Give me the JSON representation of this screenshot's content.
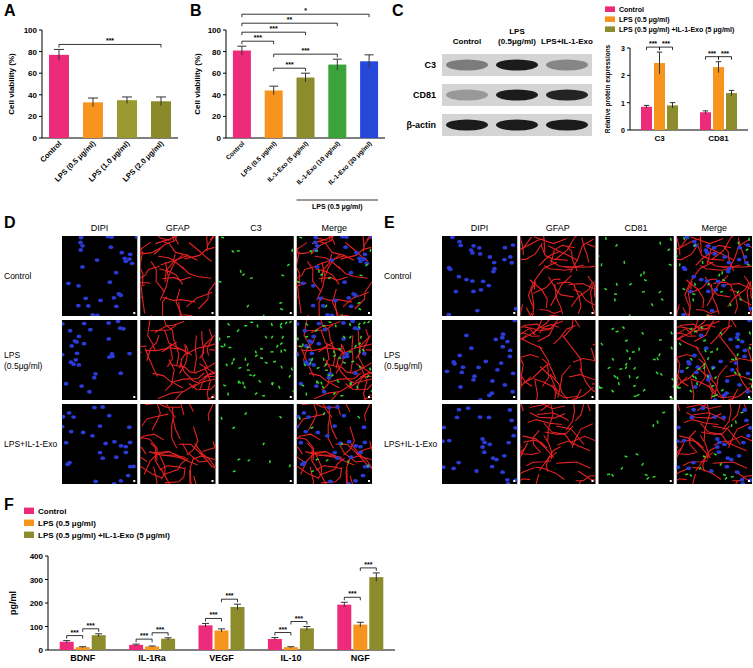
{
  "chart_data": [
    {
      "type": "bar",
      "title": "A",
      "y_label": "Cell viability (%)",
      "categories": [
        "Control",
        "LPS (0.5 μg/ml)",
        "LPS (1.0 μg/ml)",
        "LPS (2.0 μg/ml)"
      ],
      "values": [
        77,
        33,
        35,
        34
      ],
      "errors": [
        5,
        4,
        3,
        4
      ],
      "colors": [
        "#ee2a7b",
        "#f7941d",
        "#9a9a30",
        "#8a8a2a"
      ],
      "ylim": [
        0,
        100
      ],
      "yticks": [
        0,
        20,
        40,
        60,
        80,
        100
      ],
      "significance": [
        {
          "pair": [
            0,
            3
          ],
          "label": "***"
        }
      ]
    },
    {
      "type": "bar",
      "title": "B",
      "y_label": "Cell viability (%)",
      "categories": [
        "Control",
        "LPS (0.5 μg/ml)",
        "IL-1-Exo (5 μg/ml)",
        "IL-1-Exo (10 μg/ml)",
        "IL-1-Exo (20 μg/ml)"
      ],
      "values": [
        81,
        44,
        56,
        68,
        71
      ],
      "errors": [
        4,
        4,
        4,
        5,
        6
      ],
      "colors": [
        "#ee2a7b",
        "#f7941d",
        "#8c8c2c",
        "#3aa33a",
        "#2648d8"
      ],
      "ylim": [
        0,
        100
      ],
      "yticks": [
        0,
        20,
        40,
        60,
        80,
        100
      ],
      "group_label": {
        "text": "LPS (0.5 μg/ml)",
        "from": 2,
        "to": 4
      },
      "significance": [
        {
          "pair": [
            0,
            1
          ],
          "label": "***"
        },
        {
          "pair": [
            1,
            2
          ],
          "label": "***"
        },
        {
          "pair": [
            1,
            3
          ],
          "label": "***"
        },
        {
          "pair": [
            0,
            2
          ],
          "label": "***"
        },
        {
          "pair": [
            0,
            3
          ],
          "label": "**"
        },
        {
          "pair": [
            0,
            4
          ],
          "label": "*"
        }
      ]
    },
    {
      "type": "bar",
      "y_label": "Relative protein expressions",
      "categories": [
        "C3",
        "CD81"
      ],
      "series": [
        {
          "name": "Control",
          "color": "#ee2a7b",
          "values": [
            0.85,
            0.65
          ],
          "errors": [
            0.05,
            0.05
          ]
        },
        {
          "name": "LPS (0.5 μg/ml)",
          "color": "#f7941d",
          "values": [
            2.45,
            2.3
          ],
          "errors": [
            0.4,
            0.2
          ]
        },
        {
          "name": "LPS (0.5 μg/ml) +IL-1-Exo (5 μg/ml)",
          "color": "#8c8c2c",
          "values": [
            0.9,
            1.35
          ],
          "errors": [
            0.1,
            0.1
          ]
        }
      ],
      "ylim": [
        0,
        3
      ],
      "yticks": [
        0,
        1,
        2,
        3
      ],
      "legend": "top",
      "significance": [
        {
          "category": 0,
          "pair": [
            0,
            1
          ],
          "label": "***"
        },
        {
          "category": 0,
          "pair": [
            1,
            2
          ],
          "label": "***"
        },
        {
          "category": 1,
          "pair": [
            0,
            1
          ],
          "label": "***"
        },
        {
          "category": 1,
          "pair": [
            1,
            2
          ],
          "label": "***"
        }
      ]
    },
    {
      "type": "bar",
      "title": "F",
      "y_label": "pg/ml",
      "categories": [
        "BDNF",
        "IL-1Ra",
        "VEGF",
        "IL-10",
        "NGF"
      ],
      "series": [
        {
          "name": "Control",
          "color": "#ee2a7b",
          "values": [
            35,
            22,
            105,
            47,
            193
          ],
          "errors": [
            5,
            3,
            8,
            6,
            10
          ]
        },
        {
          "name": "LPS (0.5 μg/ml)",
          "color": "#f7941d",
          "values": [
            12,
            15,
            83,
            12,
            108
          ],
          "errors": [
            2,
            2,
            7,
            2,
            10
          ]
        },
        {
          "name": "LPS (0.5 μg/ml) +IL-1-Exo (5 μg/ml)",
          "color": "#8c8c2c",
          "values": [
            63,
            48,
            183,
            92,
            310
          ],
          "errors": [
            6,
            4,
            12,
            8,
            18
          ]
        }
      ],
      "ylim": [
        0,
        400
      ],
      "yticks": [
        0,
        100,
        200,
        300,
        400
      ],
      "legend": "top-left",
      "significance": [
        {
          "category": 0,
          "pair": [
            0,
            1
          ],
          "label": "***"
        },
        {
          "category": 0,
          "pair": [
            1,
            2
          ],
          "label": "***"
        },
        {
          "category": 1,
          "pair": [
            0,
            1
          ],
          "label": "***"
        },
        {
          "category": 1,
          "pair": [
            1,
            2
          ],
          "label": "***"
        },
        {
          "category": 2,
          "pair": [
            0,
            1
          ],
          "label": "***"
        },
        {
          "category": 2,
          "pair": [
            1,
            2
          ],
          "label": "***"
        },
        {
          "category": 3,
          "pair": [
            0,
            1
          ],
          "label": "***"
        },
        {
          "category": 3,
          "pair": [
            1,
            2
          ],
          "label": "***"
        },
        {
          "category": 4,
          "pair": [
            0,
            1
          ],
          "label": "***"
        },
        {
          "category": 4,
          "pair": [
            1,
            2
          ],
          "label": "***"
        }
      ]
    }
  ],
  "blot": {
    "title": "C",
    "columns": [
      [
        "Control"
      ],
      [
        "LPS",
        "(0.5μg/ml)"
      ],
      [
        "LPS+IL-1-Exo"
      ]
    ],
    "rows": [
      "C3",
      "CD81",
      "β-actin"
    ],
    "band_intensity": [
      [
        0.45,
        0.95,
        0.4
      ],
      [
        0.3,
        0.95,
        0.9
      ],
      [
        0.95,
        0.95,
        0.95
      ]
    ]
  },
  "micrographs": [
    {
      "title": "D",
      "columns": [
        "DIPI",
        "GFAP",
        "C3",
        "Merge"
      ],
      "rows": [
        [
          "Control"
        ],
        [
          "LPS",
          "(0.5μg/ml)"
        ],
        [
          "LPS+IL-1-Exo"
        ]
      ],
      "green_signal": [
        14,
        55,
        10
      ]
    },
    {
      "title": "E",
      "columns": [
        "DIPI",
        "GFAP",
        "CD81",
        "Merge"
      ],
      "rows": [
        [
          "Control"
        ],
        [
          "LPS",
          "(0.5μg/ml)"
        ],
        [
          "LPS+IL-1-Exo"
        ]
      ],
      "green_signal": [
        22,
        40,
        12
      ]
    }
  ]
}
